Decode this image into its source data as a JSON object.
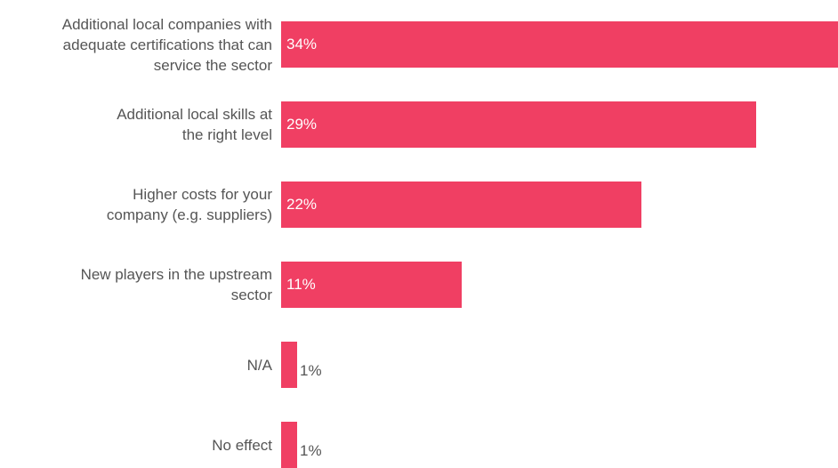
{
  "chart_data": {
    "type": "bar",
    "orientation": "horizontal",
    "categories": [
      "Additional local companies with adequate certifications that can service the sector",
      "Additional local skills at the right level",
      "Higher costs for your company (e.g. suppliers)",
      "New players in the upstream sector",
      "N/A",
      "No effect"
    ],
    "category_lines": [
      [
        "Additional local companies with",
        "adequate certifications that can",
        "service the sector"
      ],
      [
        "Additional local skills at",
        "the right level"
      ],
      [
        "Higher costs for your",
        "company (e.g. suppliers)"
      ],
      [
        "New players in the upstream",
        "sector"
      ],
      [
        "N/A"
      ],
      [
        "No effect"
      ]
    ],
    "values": [
      34,
      29,
      22,
      11,
      1,
      1
    ],
    "value_labels": [
      "34%",
      "29%",
      "22%",
      "11%",
      "1%",
      "1%"
    ],
    "unit": "%",
    "bar_color": "#f03f63",
    "title": "",
    "xlabel": "",
    "ylabel": "",
    "xlim": [
      0,
      34
    ],
    "grid": false,
    "legend": "none"
  }
}
